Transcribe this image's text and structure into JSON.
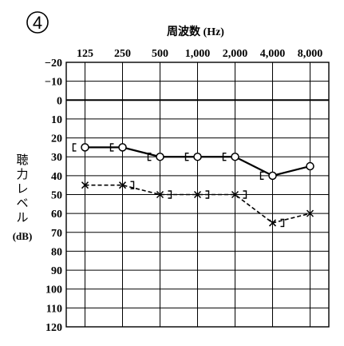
{
  "panel_number": "4",
  "chart_data": {
    "type": "line",
    "title": "",
    "xlabel": "周波数 (Hz)",
    "ylabel_chars": [
      "聴",
      "力",
      "レ",
      "ベ",
      "ル"
    ],
    "ylabel_unit": "(dB)",
    "x_ticks": [
      "125",
      "250",
      "500",
      "1,000",
      "2,000",
      "4,000",
      "8,000"
    ],
    "x": [
      125,
      250,
      500,
      1000,
      2000,
      4000,
      8000
    ],
    "y_ticks": [
      -20,
      -10,
      0,
      10,
      20,
      30,
      40,
      50,
      60,
      70,
      80,
      90,
      100,
      110,
      120
    ],
    "ylim": [
      -20,
      120
    ],
    "y_inverted": true,
    "grid": true,
    "series": [
      {
        "style": "solid",
        "marker": "circle",
        "values": [
          25,
          25,
          30,
          30,
          30,
          40,
          35
        ]
      },
      {
        "style": "dashed",
        "marker": "cross",
        "values": [
          45,
          45,
          50,
          50,
          50,
          65,
          60
        ]
      },
      {
        "marker": "open-bracket-left",
        "values": [
          25,
          25,
          30,
          30,
          30,
          40,
          null
        ]
      },
      {
        "marker": "open-bracket-right",
        "values": [
          null,
          45,
          50,
          50,
          50,
          65,
          null
        ]
      }
    ]
  }
}
